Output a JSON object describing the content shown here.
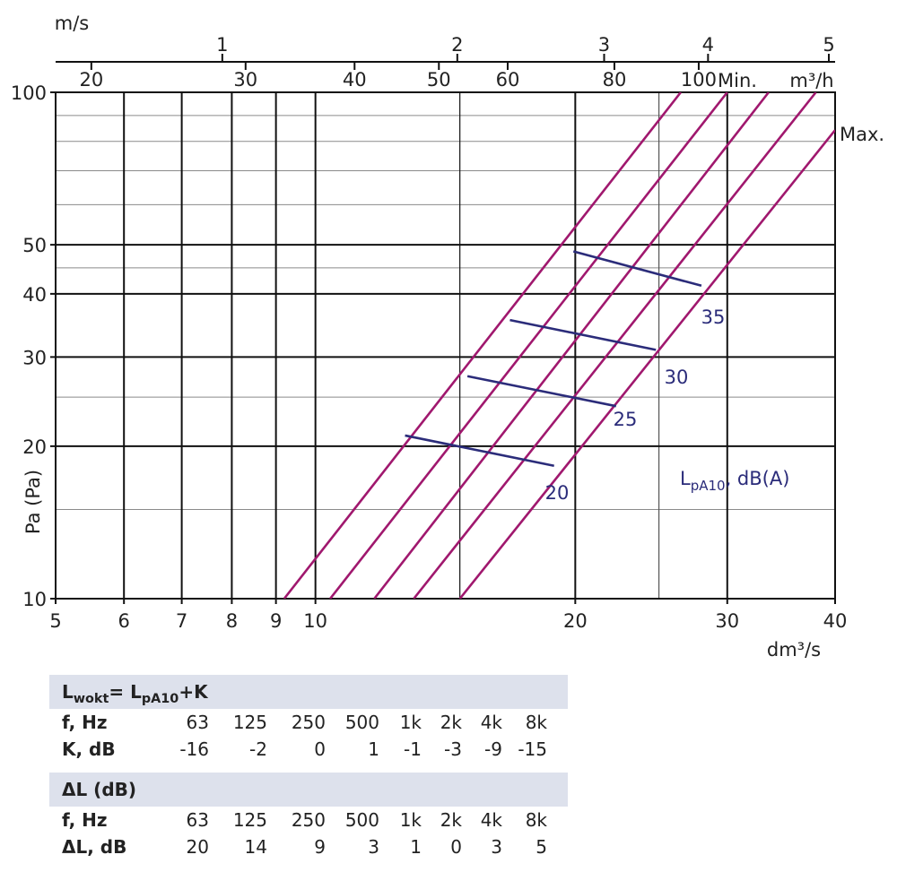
{
  "chart_data": {
    "type": "line",
    "x_axis": {
      "label": "dm³/s",
      "scale": "log",
      "range": [
        5,
        40
      ],
      "ticks": [
        5,
        6,
        7,
        8,
        9,
        10,
        20,
        30,
        40
      ],
      "minor_gridlines": [
        25
      ]
    },
    "y_axis": {
      "label": "Pa (Pa)",
      "scale": "log",
      "range": [
        10,
        100
      ],
      "ticks": [
        10,
        20,
        30,
        40,
        50,
        100
      ],
      "minor_gridlines": [
        15,
        25,
        45,
        60,
        70,
        80,
        90
      ]
    },
    "top_axes": {
      "velocity": {
        "label": "m/s",
        "ticks": [
          [
            "1",
            7.8
          ],
          [
            "2",
            14.6
          ],
          [
            "3",
            21.6
          ],
          [
            "4",
            28.5
          ],
          [
            "5",
            40
          ]
        ]
      },
      "flow_m3h": {
        "label": "m³/h",
        "ticks": [
          [
            "20",
            5.5
          ],
          [
            "30",
            8.3
          ],
          [
            "40",
            11.1
          ],
          [
            "50",
            13.9
          ],
          [
            "60",
            16.7
          ],
          [
            "80",
            22.2
          ],
          [
            "100",
            27.8
          ]
        ]
      }
    },
    "series": [
      {
        "points": [
          [
            9.2,
            10
          ],
          [
            26.5,
            100
          ]
        ]
      },
      {
        "points": [
          [
            10.4,
            10
          ],
          [
            30.0,
            100
          ]
        ]
      },
      {
        "points": [
          [
            11.7,
            10
          ],
          [
            33.5,
            100
          ]
        ]
      },
      {
        "points": [
          [
            13.0,
            10
          ],
          [
            38.0,
            100
          ]
        ]
      },
      {
        "points": [
          [
            14.7,
            10
          ],
          [
            40.0,
            84.2
          ]
        ]
      }
    ],
    "series_labels": {
      "min": "Min.",
      "max": "Max."
    },
    "sound_lines": [
      {
        "label": "35",
        "points": [
          [
            19.9,
            48.5
          ],
          [
            28.0,
            41.5
          ]
        ]
      },
      {
        "label": "30",
        "points": [
          [
            16.8,
            35.5
          ],
          [
            24.8,
            31.0
          ]
        ]
      },
      {
        "label": "25",
        "points": [
          [
            15.0,
            27.5
          ],
          [
            22.3,
            24.0
          ]
        ]
      },
      {
        "label": "20",
        "points": [
          [
            12.7,
            21.0
          ],
          [
            18.9,
            18.3
          ]
        ]
      }
    ],
    "sound_label": "L",
    "sound_label_sub": "pA10",
    "sound_label_rest": ", dB(A)",
    "grid": true
  },
  "tables": [
    {
      "title_main": "L",
      "title_sub": "wokt",
      "title_rest": "= L",
      "title_sub2": "pA10",
      "title_end": "+K",
      "rows": [
        {
          "label": "f, Hz",
          "values": [
            "63",
            "125",
            "250",
            "500",
            "1k",
            "2k",
            "4k",
            "8k"
          ]
        },
        {
          "label": "K, dB",
          "values": [
            "-16",
            "-2",
            "0",
            "1",
            "-1",
            "-3",
            "-9",
            "-15"
          ]
        }
      ]
    },
    {
      "title": "ΔL (dB)",
      "rows": [
        {
          "label": "f, Hz",
          "values": [
            "63",
            "125",
            "250",
            "500",
            "1k",
            "2k",
            "4k",
            "8k"
          ]
        },
        {
          "label": "ΔL, dB",
          "values": [
            "20",
            "14",
            "9",
            "3",
            "1",
            "0",
            "3",
            "5"
          ]
        }
      ]
    }
  ]
}
